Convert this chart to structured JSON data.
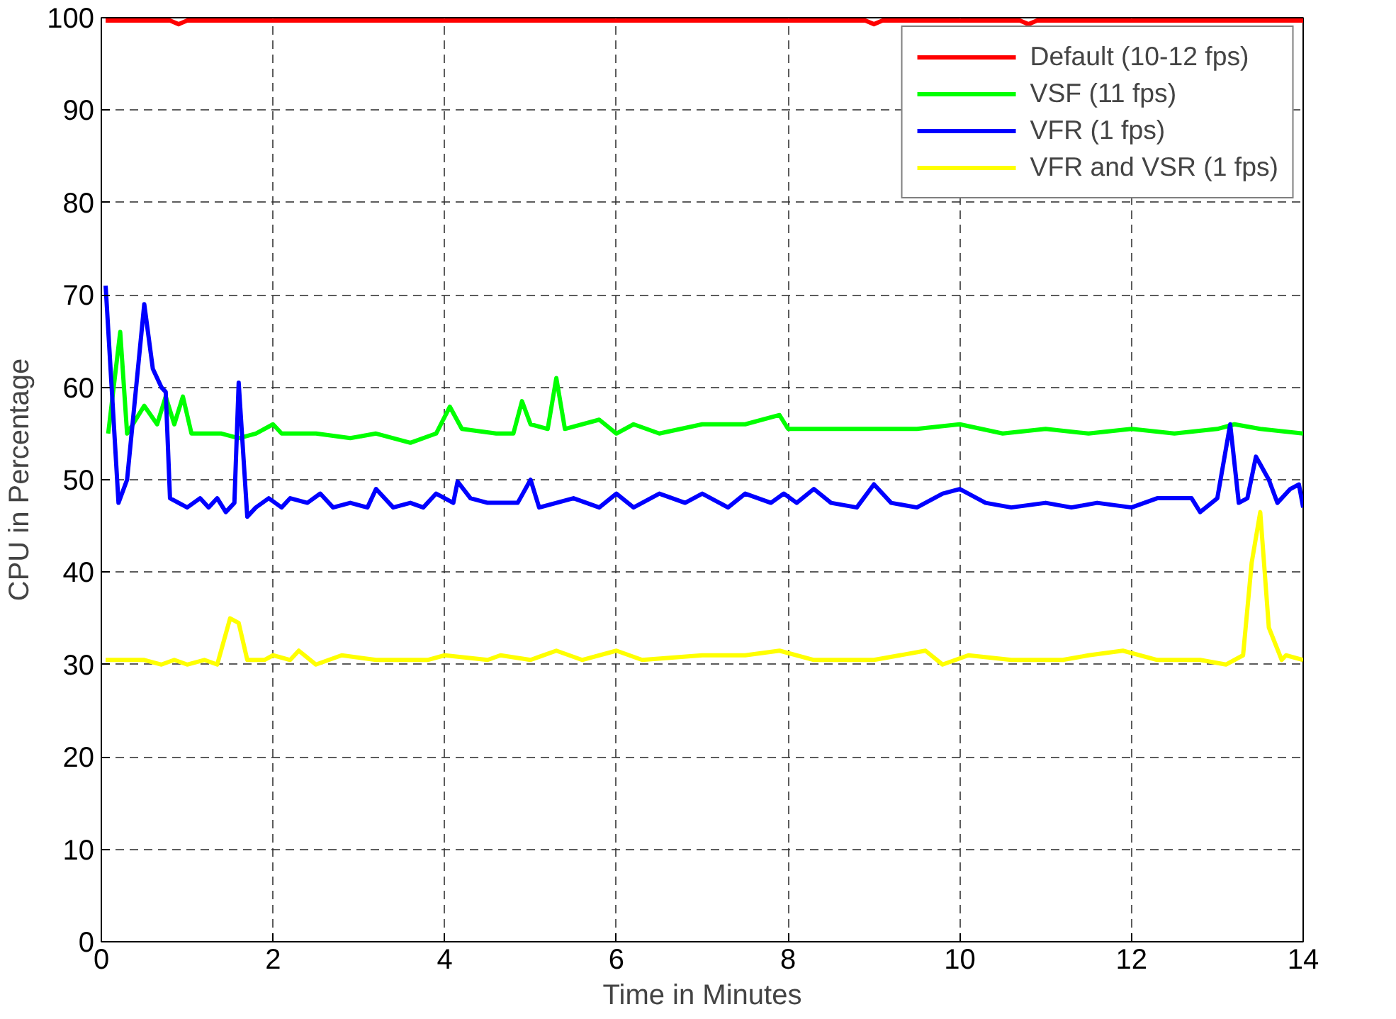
{
  "chart_data": {
    "type": "line",
    "xlabel": "Time in Minutes",
    "ylabel": "CPU in Percentage",
    "xlim": [
      0,
      14
    ],
    "ylim": [
      0,
      100
    ],
    "xticks": [
      0,
      2,
      4,
      6,
      8,
      10,
      12,
      14
    ],
    "yticks": [
      0,
      10,
      20,
      30,
      40,
      50,
      60,
      70,
      80,
      90,
      100
    ],
    "grid": true,
    "legend": "top right",
    "line_style": "solid",
    "series": [
      {
        "name": "Default (10-12 fps)",
        "color": "#ff0000",
        "x": [
          0.05,
          0.8,
          0.9,
          1.0,
          8.9,
          9.0,
          9.1,
          10.7,
          10.8,
          10.9,
          14
        ],
        "values": [
          99.7,
          99.7,
          99.3,
          99.7,
          99.7,
          99.3,
          99.7,
          99.7,
          99.3,
          99.7,
          99.7
        ]
      },
      {
        "name": "VSF (11 fps)",
        "color": "#00ff00",
        "x": [
          0.08,
          0.22,
          0.3,
          0.5,
          0.65,
          0.75,
          0.85,
          0.95,
          1.05,
          1.2,
          1.4,
          1.6,
          1.8,
          2.0,
          2.1,
          2.5,
          2.9,
          3.2,
          3.6,
          3.9,
          4.06,
          4.2,
          4.6,
          4.8,
          4.9,
          5.0,
          5.2,
          5.3,
          5.4,
          5.8,
          6.0,
          6.2,
          6.5,
          7.0,
          7.5,
          7.9,
          8.0,
          8.5,
          9.0,
          9.5,
          10.0,
          10.5,
          11.0,
          11.5,
          12.0,
          12.5,
          13.0,
          13.2,
          13.5,
          14.0
        ],
        "values": [
          55,
          66,
          55,
          58,
          56,
          59,
          56,
          59,
          55,
          55,
          55,
          54.5,
          55,
          56,
          55,
          55,
          54.5,
          55,
          54,
          55,
          57.9,
          55.5,
          55,
          55,
          58.5,
          56,
          55.5,
          61,
          55.5,
          56.5,
          55,
          56,
          55,
          56,
          56,
          57,
          55.5,
          55.5,
          55.5,
          55.5,
          56,
          55,
          55.5,
          55,
          55.5,
          55,
          55.5,
          56,
          55.5,
          55
        ]
      },
      {
        "name": "VFR (1 fps)",
        "color": "#0000ff",
        "x": [
          0.05,
          0.2,
          0.3,
          0.5,
          0.6,
          0.7,
          0.75,
          0.8,
          1.0,
          1.15,
          1.25,
          1.35,
          1.45,
          1.55,
          1.6,
          1.7,
          1.8,
          1.95,
          2.1,
          2.2,
          2.4,
          2.55,
          2.7,
          2.9,
          3.1,
          3.2,
          3.4,
          3.6,
          3.75,
          3.9,
          4.1,
          4.15,
          4.3,
          4.5,
          4.7,
          4.85,
          5.0,
          5.1,
          5.5,
          5.8,
          6.0,
          6.2,
          6.5,
          6.8,
          7.0,
          7.3,
          7.5,
          7.8,
          7.95,
          8.1,
          8.3,
          8.5,
          8.8,
          9.0,
          9.2,
          9.5,
          9.8,
          10.0,
          10.3,
          10.6,
          11.0,
          11.3,
          11.6,
          12.0,
          12.3,
          12.7,
          12.8,
          13.0,
          13.15,
          13.25,
          13.35,
          13.45,
          13.6,
          13.7,
          13.85,
          13.95,
          14.0
        ],
        "values": [
          71,
          47.5,
          50,
          69,
          62,
          60,
          59.5,
          48,
          47,
          48,
          47,
          48,
          46.5,
          47.5,
          60.5,
          46,
          47,
          48,
          47,
          48,
          47.5,
          48.5,
          47,
          47.5,
          47,
          49,
          47,
          47.5,
          47,
          48.5,
          47.5,
          49.8,
          48,
          47.5,
          47.5,
          47.5,
          50,
          47,
          48,
          47,
          48.5,
          47,
          48.5,
          47.5,
          48.5,
          47,
          48.5,
          47.5,
          48.5,
          47.5,
          49,
          47.5,
          47,
          49.5,
          47.5,
          47,
          48.5,
          49,
          47.5,
          47,
          47.5,
          47,
          47.5,
          47,
          48,
          48,
          46.5,
          48,
          56,
          47.5,
          48,
          52.5,
          50,
          47.5,
          49,
          49.5,
          47
        ]
      },
      {
        "name": "VFR and VSR (1 fps)",
        "color": "#ffff00",
        "x": [
          0.05,
          0.5,
          0.7,
          0.85,
          1.0,
          1.2,
          1.35,
          1.5,
          1.6,
          1.7,
          1.9,
          2.0,
          2.2,
          2.3,
          2.5,
          2.8,
          3.2,
          3.8,
          4.0,
          4.5,
          4.65,
          5.0,
          5.3,
          5.6,
          6.0,
          6.3,
          7.0,
          7.5,
          7.9,
          8.3,
          9.0,
          9.6,
          9.8,
          10.1,
          10.6,
          11.2,
          11.5,
          11.9,
          12.3,
          12.8,
          13.1,
          13.3,
          13.4,
          13.5,
          13.6,
          13.75,
          13.8,
          14.0
        ],
        "values": [
          30.5,
          30.5,
          30,
          30.5,
          30,
          30.5,
          30,
          35,
          34.5,
          30.5,
          30.5,
          31,
          30.5,
          31.5,
          30,
          31,
          30.5,
          30.5,
          31,
          30.5,
          31,
          30.5,
          31.5,
          30.5,
          31.5,
          30.5,
          31,
          31,
          31.5,
          30.5,
          30.5,
          31.5,
          30,
          31,
          30.5,
          30.5,
          31,
          31.5,
          30.5,
          30.5,
          30,
          31,
          41,
          46.5,
          34,
          30.5,
          31,
          30.5
        ]
      }
    ]
  }
}
